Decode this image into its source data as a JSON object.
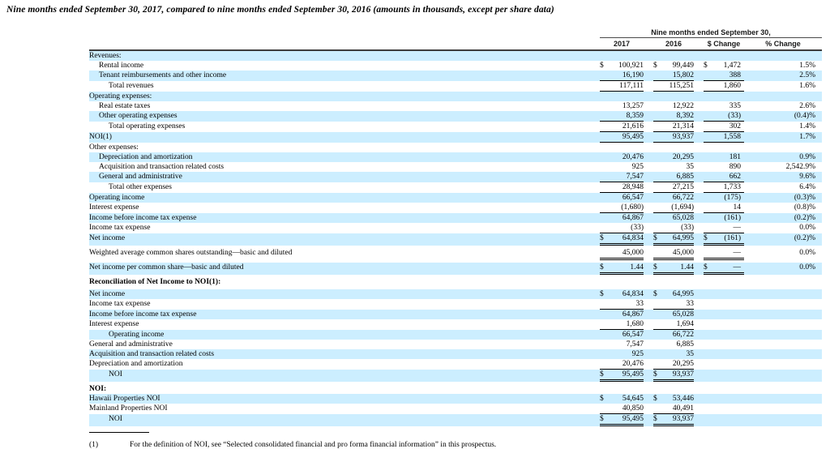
{
  "title": "Nine months ended September 30, 2017, compared to nine months ended September 30, 2016 (amounts in thousands, except per share data)",
  "colors": {
    "stripe_blue": "#cceeff",
    "header_rule": "#3d3d3d"
  },
  "table": {
    "group_header": "Nine months ended September 30,",
    "columns": [
      "2017",
      "2016",
      "$ Change",
      "% Change"
    ],
    "rows": [
      {
        "label": "Revenues:",
        "shaded": true,
        "cells": []
      },
      {
        "label": "Rental income",
        "indent": 1,
        "cells": [
          {
            "d": "$",
            "v": "100,921"
          },
          {
            "d": "$",
            "v": "99,449"
          },
          {
            "d": "$",
            "v": "1,472"
          },
          {
            "v": "1.5%"
          }
        ]
      },
      {
        "label": "Tenant reimbursements and other income",
        "indent": 1,
        "shaded": true,
        "cells": [
          {
            "v": "16,190",
            "u": 1
          },
          {
            "v": "15,802",
            "u": 1
          },
          {
            "v": "388",
            "u": 1
          },
          {
            "v": "2.5%"
          }
        ]
      },
      {
        "label": "Total revenues",
        "indent": 2,
        "cells": [
          {
            "v": "117,111",
            "u": 1
          },
          {
            "v": "115,251",
            "u": 1
          },
          {
            "v": "1,860",
            "u": 1
          },
          {
            "v": "1.6%"
          }
        ]
      },
      {
        "label": "Operating expenses:",
        "shaded": true,
        "cells": []
      },
      {
        "label": "Real estate taxes",
        "indent": 1,
        "cells": [
          {
            "v": "13,257"
          },
          {
            "v": "12,922"
          },
          {
            "v": "335"
          },
          {
            "v": "2.6%"
          }
        ]
      },
      {
        "label": "Other operating expenses",
        "indent": 1,
        "shaded": true,
        "cells": [
          {
            "v": "8,359",
            "u": 1
          },
          {
            "v": "8,392",
            "u": 1
          },
          {
            "v": "(33)",
            "u": 1
          },
          {
            "v": "(0.4)%"
          }
        ]
      },
      {
        "label": "Total operating expenses",
        "indent": 2,
        "cells": [
          {
            "v": "21,616",
            "u": 1
          },
          {
            "v": "21,314",
            "u": 1
          },
          {
            "v": "302",
            "u": 1
          },
          {
            "v": "1.4%"
          }
        ]
      },
      {
        "label": "NOI(1)",
        "shaded": true,
        "cells": [
          {
            "v": "95,495",
            "u": 1
          },
          {
            "v": "93,937",
            "u": 1
          },
          {
            "v": "1,558",
            "u": 1
          },
          {
            "v": "1.7%"
          }
        ]
      },
      {
        "label": "Other expenses:",
        "cells": []
      },
      {
        "label": "Depreciation and amortization",
        "indent": 1,
        "shaded": true,
        "cells": [
          {
            "v": "20,476"
          },
          {
            "v": "20,295"
          },
          {
            "v": "181"
          },
          {
            "v": "0.9%"
          }
        ]
      },
      {
        "label": "Acquisition and transaction related costs",
        "indent": 1,
        "cells": [
          {
            "v": "925"
          },
          {
            "v": "35"
          },
          {
            "v": "890"
          },
          {
            "v": "2,542.9%"
          }
        ]
      },
      {
        "label": "General and administrative",
        "indent": 1,
        "shaded": true,
        "cells": [
          {
            "v": "7,547",
            "u": 1
          },
          {
            "v": "6,885",
            "u": 1
          },
          {
            "v": "662",
            "u": 1
          },
          {
            "v": "9.6%"
          }
        ]
      },
      {
        "label": "Total other expenses",
        "indent": 2,
        "cells": [
          {
            "v": "28,948",
            "u": 1
          },
          {
            "v": "27,215",
            "u": 1
          },
          {
            "v": "1,733",
            "u": 1
          },
          {
            "v": "6.4%"
          }
        ]
      },
      {
        "label": "Operating income",
        "shaded": true,
        "cells": [
          {
            "v": "66,547"
          },
          {
            "v": "66,722"
          },
          {
            "v": "(175)"
          },
          {
            "v": "(0.3)%"
          }
        ]
      },
      {
        "label": "Interest expense",
        "cells": [
          {
            "v": "(1,680)",
            "u": 1
          },
          {
            "v": "(1,694)",
            "u": 1
          },
          {
            "v": "14",
            "u": 1
          },
          {
            "v": "(0.8)%"
          }
        ]
      },
      {
        "label": "Income before income tax expense",
        "shaded": true,
        "cells": [
          {
            "v": "64,867"
          },
          {
            "v": "65,028"
          },
          {
            "v": "(161)"
          },
          {
            "v": "(0.2)%"
          }
        ]
      },
      {
        "label": "Income tax expense",
        "cells": [
          {
            "v": "(33)",
            "u": 1
          },
          {
            "v": "(33)",
            "u": 1
          },
          {
            "v": "—",
            "u": 1
          },
          {
            "v": "0.0%"
          }
        ]
      },
      {
        "label": "Net income",
        "shaded": true,
        "cells": [
          {
            "d": "$",
            "v": "64,834",
            "u": 2
          },
          {
            "d": "$",
            "v": "64,995",
            "u": 2
          },
          {
            "d": "$",
            "v": "(161)",
            "u": 2
          },
          {
            "v": "(0.2)%"
          }
        ]
      },
      {
        "label": "Weighted average common shares outstanding—basic and diluted",
        "gap": true,
        "cells": [
          {
            "v": "45,000",
            "u": 2
          },
          {
            "v": "45,000",
            "u": 2
          },
          {
            "v": "—",
            "u": 2
          },
          {
            "v": "0.0%"
          }
        ]
      },
      {
        "label": "Net income per common share—basic and diluted",
        "shaded": true,
        "gap": true,
        "cells": [
          {
            "d": "$",
            "v": "1.44",
            "u": 2
          },
          {
            "d": "$",
            "v": "1.44",
            "u": 2
          },
          {
            "d": "$",
            "v": "—",
            "u": 2
          },
          {
            "v": "0.0%"
          }
        ]
      },
      {
        "label": "Reconciliation of Net Income to NOI(1):",
        "bold": true,
        "gap": true,
        "cells": []
      },
      {
        "label": "Net income",
        "shaded": true,
        "gap": true,
        "cells": [
          {
            "d": "$",
            "v": "64,834"
          },
          {
            "d": "$",
            "v": "64,995"
          },
          null,
          null
        ]
      },
      {
        "label": "Income tax expense",
        "cells": [
          {
            "v": "33",
            "u": 1
          },
          {
            "v": "33",
            "u": 1
          },
          null,
          null
        ]
      },
      {
        "label": "Income before income tax expense",
        "shaded": true,
        "cells": [
          {
            "v": "64,867"
          },
          {
            "v": "65,028"
          },
          null,
          null
        ]
      },
      {
        "label": "Interest expense",
        "cells": [
          {
            "v": "1,680",
            "u": 1
          },
          {
            "v": "1,694",
            "u": 1
          },
          null,
          null
        ]
      },
      {
        "label": "Operating income",
        "indent": 2,
        "shaded": true,
        "cells": [
          {
            "v": "66,547"
          },
          {
            "v": "66,722"
          },
          null,
          null
        ]
      },
      {
        "label": "General and administrative",
        "cells": [
          {
            "v": "7,547"
          },
          {
            "v": "6,885"
          },
          null,
          null
        ]
      },
      {
        "label": "Acquisition and transaction related costs",
        "shaded": true,
        "cells": [
          {
            "v": "925"
          },
          {
            "v": "35"
          },
          null,
          null
        ]
      },
      {
        "label": "Depreciation and amortization",
        "cells": [
          {
            "v": "20,476",
            "u": 1
          },
          {
            "v": "20,295",
            "u": 1
          },
          null,
          null
        ]
      },
      {
        "label": "NOI",
        "indent": 2,
        "shaded": true,
        "cells": [
          {
            "d": "$",
            "v": "95,495",
            "u": 2
          },
          {
            "d": "$",
            "v": "93,937",
            "u": 2
          },
          null,
          null
        ]
      },
      {
        "label": "NOI:",
        "bold": true,
        "gap": true,
        "cells": []
      },
      {
        "label": "Hawaii Properties NOI",
        "shaded": true,
        "cells": [
          {
            "d": "$",
            "v": "54,645"
          },
          {
            "d": "$",
            "v": "53,446"
          },
          null,
          null
        ]
      },
      {
        "label": "Mainland Properties NOI",
        "cells": [
          {
            "v": "40,850",
            "u": 1
          },
          {
            "v": "40,491",
            "u": 1
          },
          null,
          null
        ]
      },
      {
        "label": "NOI",
        "indent": 2,
        "shaded": true,
        "cells": [
          {
            "d": "$",
            "v": "95,495",
            "u": 2
          },
          {
            "d": "$",
            "v": "93,937",
            "u": 2
          },
          null,
          null
        ]
      }
    ]
  },
  "footnote": {
    "marker": "(1)",
    "text": "For the definition of NOI, see “Selected consolidated financial and pro forma financial information” in this prospectus."
  }
}
